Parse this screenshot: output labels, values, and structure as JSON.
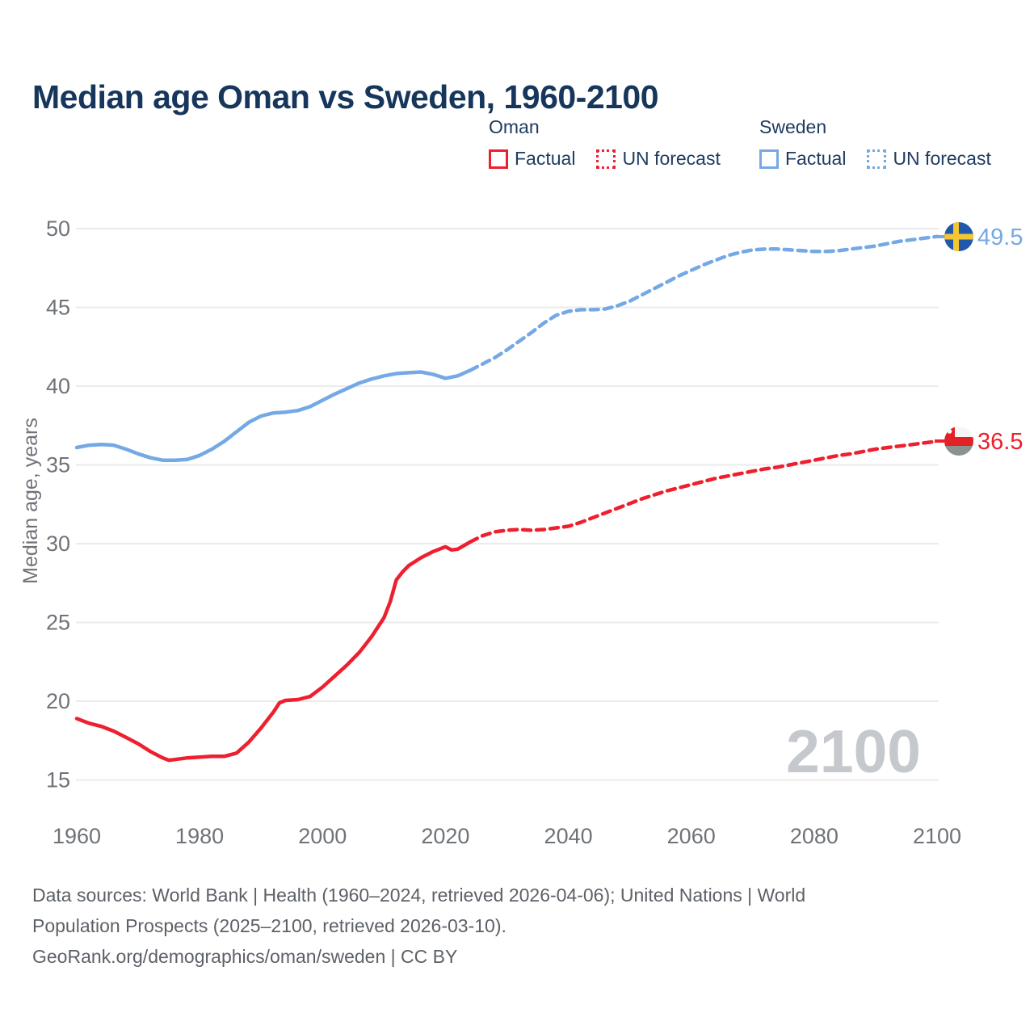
{
  "title": "Median age Oman vs Sweden, 1960-2100",
  "watermark": "2100",
  "legend": {
    "groups": [
      {
        "country": "Oman",
        "items": [
          {
            "label": "Factual",
            "style": "solid"
          },
          {
            "label": "UN forecast",
            "style": "dotted"
          }
        ]
      },
      {
        "country": "Sweden",
        "items": [
          {
            "label": "Factual",
            "style": "solid"
          },
          {
            "label": "UN forecast",
            "style": "dotted"
          }
        ]
      }
    ]
  },
  "footer": {
    "lines": [
      "Data sources: World Bank | Health (1960–2024, retrieved 2026-04-06); United Nations | World",
      "Population Prospects (2025–2100, retrieved 2026-03-10).",
      "GeoRank.org/demographics/oman/sweden | CC BY"
    ]
  },
  "colors": {
    "title_navy": "#16365c",
    "legend_navy": "#1e3c60",
    "axis_gray": "#6f7378",
    "grid_gray": "#ebebed",
    "footer_gray": "#5c6167",
    "watermark_gray": "#c5c8cc",
    "oman_red": "#ee1f2e",
    "sweden_blue": "#74a9e5",
    "sweden_flag_blue": "#2158ab",
    "sweden_flag_yellow": "#f3c634",
    "oman_flag_red": "#e32227",
    "oman_flag_green": "#8b938f",
    "oman_flag_white": "#f6f6f4"
  },
  "chart_data": {
    "type": "line",
    "title": "Median age Oman vs Sweden, 1960-2100",
    "xlabel": "",
    "ylabel": "Median age, years",
    "xlim": [
      1960,
      2100
    ],
    "ylim": [
      13.5,
      51
    ],
    "x_ticks": [
      1960,
      1980,
      2000,
      2020,
      2040,
      2060,
      2080,
      2100
    ],
    "y_ticks": [
      15,
      20,
      25,
      30,
      35,
      40,
      45,
      50
    ],
    "grid": "horizontal-only",
    "legend_position": "top-right",
    "series": [
      {
        "name": "Oman — Factual",
        "color": "#ee1f2e",
        "dash": "solid",
        "x": [
          1960,
          1962,
          1964,
          1966,
          1968,
          1970,
          1972,
          1974,
          1975,
          1976,
          1978,
          1980,
          1982,
          1984,
          1986,
          1988,
          1990,
          1992,
          1993,
          1994,
          1996,
          1998,
          2000,
          2002,
          2004,
          2006,
          2008,
          2010,
          2011,
          2012,
          2013,
          2014,
          2016,
          2018,
          2020,
          2021,
          2022,
          2024
        ],
        "values": [
          18.9,
          18.6,
          18.4,
          18.1,
          17.7,
          17.3,
          16.8,
          16.4,
          16.25,
          16.3,
          16.4,
          16.45,
          16.5,
          16.5,
          16.7,
          17.4,
          18.3,
          19.3,
          19.9,
          20.05,
          20.1,
          20.3,
          20.9,
          21.6,
          22.3,
          23.1,
          24.1,
          25.3,
          26.3,
          27.7,
          28.2,
          28.6,
          29.1,
          29.5,
          29.8,
          29.6,
          29.65,
          30.1
        ]
      },
      {
        "name": "Oman — UN forecast",
        "color": "#ee1f2e",
        "dash": "dashed",
        "x": [
          2024,
          2025,
          2026,
          2028,
          2030,
          2032,
          2034,
          2036,
          2038,
          2040,
          2042,
          2044,
          2046,
          2048,
          2050,
          2052,
          2054,
          2056,
          2058,
          2060,
          2062,
          2064,
          2066,
          2068,
          2070,
          2072,
          2074,
          2076,
          2078,
          2080,
          2082,
          2084,
          2086,
          2088,
          2090,
          2092,
          2094,
          2096,
          2098,
          2100
        ],
        "values": [
          30.1,
          30.3,
          30.5,
          30.75,
          30.85,
          30.9,
          30.85,
          30.9,
          31.0,
          31.1,
          31.35,
          31.65,
          31.95,
          32.25,
          32.55,
          32.85,
          33.1,
          33.35,
          33.55,
          33.75,
          33.95,
          34.15,
          34.3,
          34.45,
          34.6,
          34.75,
          34.85,
          35.0,
          35.15,
          35.3,
          35.45,
          35.6,
          35.7,
          35.85,
          36.0,
          36.1,
          36.2,
          36.3,
          36.4,
          36.5
        ]
      },
      {
        "name": "Sweden — Factual",
        "color": "#74a9e5",
        "dash": "solid",
        "x": [
          1960,
          1962,
          1964,
          1966,
          1968,
          1970,
          1972,
          1974,
          1976,
          1978,
          1980,
          1982,
          1984,
          1986,
          1988,
          1990,
          1992,
          1994,
          1996,
          1998,
          2000,
          2002,
          2004,
          2006,
          2008,
          2010,
          2012,
          2014,
          2016,
          2018,
          2020,
          2022,
          2024
        ],
        "values": [
          36.1,
          36.25,
          36.3,
          36.25,
          36.0,
          35.7,
          35.45,
          35.3,
          35.3,
          35.35,
          35.6,
          36.0,
          36.5,
          37.1,
          37.7,
          38.1,
          38.3,
          38.35,
          38.45,
          38.7,
          39.1,
          39.5,
          39.85,
          40.2,
          40.45,
          40.65,
          40.8,
          40.85,
          40.9,
          40.75,
          40.5,
          40.65,
          41.0
        ]
      },
      {
        "name": "Sweden — UN forecast",
        "color": "#74a9e5",
        "dash": "dashed",
        "x": [
          2024,
          2025,
          2026,
          2028,
          2030,
          2032,
          2034,
          2036,
          2038,
          2040,
          2042,
          2044,
          2046,
          2048,
          2050,
          2052,
          2054,
          2056,
          2058,
          2060,
          2062,
          2064,
          2066,
          2068,
          2070,
          2072,
          2074,
          2076,
          2078,
          2080,
          2082,
          2084,
          2086,
          2088,
          2090,
          2092,
          2094,
          2096,
          2098,
          2100
        ],
        "values": [
          41.0,
          41.2,
          41.4,
          41.8,
          42.3,
          42.85,
          43.4,
          44.0,
          44.5,
          44.75,
          44.85,
          44.85,
          44.9,
          45.1,
          45.4,
          45.8,
          46.2,
          46.6,
          47.0,
          47.35,
          47.7,
          48.0,
          48.3,
          48.5,
          48.65,
          48.7,
          48.7,
          48.65,
          48.6,
          48.55,
          48.55,
          48.6,
          48.7,
          48.8,
          48.9,
          49.05,
          49.2,
          49.3,
          49.4,
          49.5
        ]
      }
    ],
    "end_labels": [
      {
        "series": "Sweden",
        "year": 2100,
        "value": 49.5,
        "flag": "sweden"
      },
      {
        "series": "Oman",
        "year": 2100,
        "value": 36.5,
        "flag": "oman"
      }
    ]
  }
}
